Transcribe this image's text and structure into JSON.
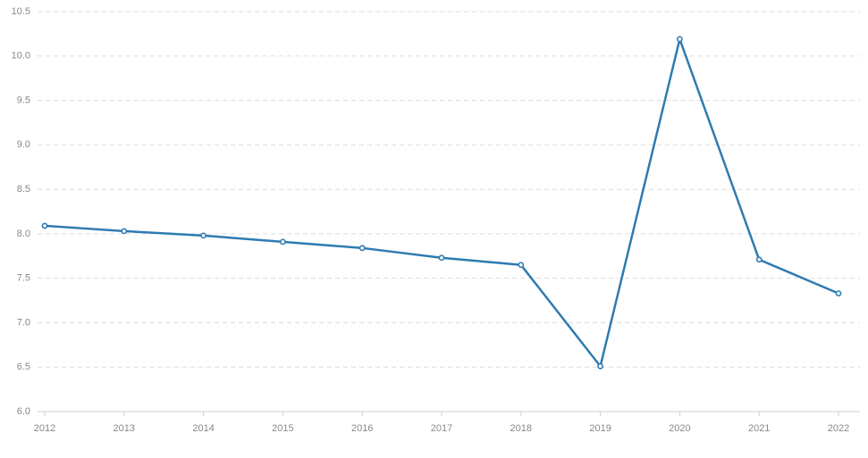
{
  "chart_data": {
    "type": "line",
    "title": "",
    "xlabel": "",
    "ylabel": "",
    "x": [
      "2012",
      "2013",
      "2014",
      "2015",
      "2016",
      "2017",
      "2018",
      "2019",
      "2020",
      "2021",
      "2022"
    ],
    "series": [
      {
        "values": [
          8.09,
          8.03,
          7.98,
          7.91,
          7.84,
          7.73,
          7.65,
          6.51,
          10.19,
          7.71,
          7.33
        ]
      }
    ],
    "ylim": [
      6.0,
      10.5
    ],
    "yticks": [
      "6.0",
      "6.5",
      "7.0",
      "7.5",
      "8.0",
      "8.5",
      "9.0",
      "9.5",
      "10.0",
      "10.5"
    ],
    "grid": true,
    "legend": "none",
    "colors": {
      "series": "#2e7bb0",
      "grid": "#dcdcdc",
      "tick_label": "#888888"
    }
  }
}
